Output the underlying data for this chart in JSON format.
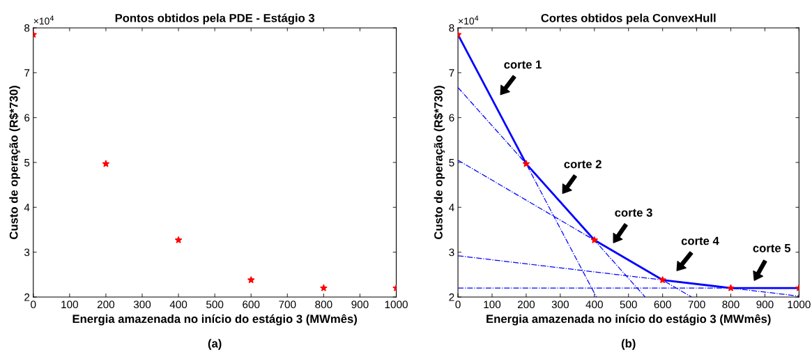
{
  "chart_data": [
    {
      "type": "scatter",
      "title": "Pontos obtidos pela PDE - Estágio 3",
      "xlabel": "Energia amazenada no início do estágio 3 (MWmês)",
      "ylabel": "Custo de operação (R$*730)",
      "x": [
        0,
        200,
        400,
        600,
        800,
        1000
      ],
      "series": [
        {
          "color": "#ff0000",
          "marker": "star",
          "values": [
            7.85,
            4.97,
            3.27,
            2.38,
            2.2,
            2.2
          ]
        }
      ],
      "xlim": [
        0,
        1000
      ],
      "xticks": [
        0,
        100,
        200,
        300,
        400,
        500,
        600,
        700,
        800,
        900,
        1000
      ],
      "ylim": [
        2,
        8
      ],
      "yticks": [
        2,
        3,
        4,
        5,
        6,
        7,
        8
      ],
      "grid": false,
      "legend": false,
      "annotations": [
        "×10$^{4}$",
        "(a)"
      ]
    },
    {
      "type": "line",
      "title": "Cortes obtidos pela ConvexHull",
      "xlabel": "Energia amazenada no início do estágio 3 (MWmês)",
      "ylabel": "Custo de operação (R$*730)",
      "series": [
        {
          "color": "#0000ff",
          "line_style": "dashdot",
          "x": [
            0,
            406
          ],
          "values": [
            7.85,
            2.0
          ]
        },
        {
          "color": "#0000ff",
          "line_style": "dashdot",
          "x": [
            0,
            549
          ],
          "values": [
            6.67,
            2.0
          ]
        },
        {
          "color": "#0000ff",
          "line_style": "dashdot",
          "x": [
            0,
            685
          ],
          "values": [
            5.05,
            2.0
          ]
        },
        {
          "color": "#0000ff",
          "line_style": "dashdot",
          "x": [
            0,
            1000
          ],
          "values": [
            2.92,
            2.02
          ]
        },
        {
          "color": "#0000ff",
          "line_style": "dashdot",
          "x": [
            0,
            1000
          ],
          "values": [
            2.2,
            2.2
          ]
        },
        {
          "color": "#0000ff",
          "line_style": "solid",
          "x": [
            0,
            200,
            400,
            600,
            800,
            1000
          ],
          "values": [
            7.85,
            4.97,
            3.27,
            2.38,
            2.2,
            2.2
          ]
        },
        {
          "type": "scatter",
          "color": "#ff0000",
          "marker": "star",
          "x": [
            0,
            200,
            400,
            600,
            800,
            1000
          ],
          "values": [
            7.85,
            4.97,
            3.27,
            2.38,
            2.2,
            2.2
          ]
        }
      ],
      "xlim": [
        0,
        1000
      ],
      "xticks": [
        0,
        100,
        200,
        300,
        400,
        500,
        600,
        700,
        800,
        900,
        1000
      ],
      "ylim": [
        2,
        8
      ],
      "yticks": [
        2,
        3,
        4,
        5,
        6,
        7,
        8
      ],
      "grid": false,
      "legend": false,
      "annotations": [
        "×10$^{4}$",
        "(b)",
        "corte 1",
        "corte 2",
        "corte 3",
        "corte 4",
        "corte 5"
      ]
    }
  ]
}
